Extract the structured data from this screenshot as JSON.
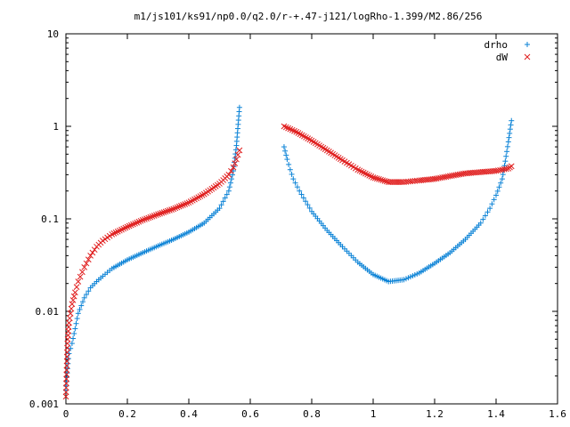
{
  "chart_data": {
    "type": "scatter",
    "title": "m1/js101/ks91/np0.0/q2.0/r-+.47-j121/logRho-1.399/M2.86/256",
    "xlabel": "",
    "ylabel": "",
    "xlim": [
      0,
      1.6
    ],
    "ylim": [
      0.001,
      10
    ],
    "yscale": "log",
    "grid": false,
    "legend_position": "top-right",
    "x_ticks": [
      "0",
      "0.2",
      "0.4",
      "0.6",
      "0.8",
      "1",
      "1.2",
      "1.4",
      "1.6"
    ],
    "y_ticks": [
      "0.001",
      "0.01",
      "0.1",
      "1",
      "10"
    ],
    "series": [
      {
        "name": "drho",
        "marker": "plus",
        "color": "#0a82d6",
        "segments": [
          {
            "x": [
              0.0,
              0.005,
              0.01,
              0.02,
              0.03,
              0.04,
              0.06,
              0.08,
              0.1,
              0.12,
              0.15,
              0.2,
              0.25,
              0.3,
              0.35,
              0.4,
              0.45,
              0.5,
              0.53,
              0.545,
              0.555,
              0.565
            ],
            "y": [
              0.0014,
              0.0024,
              0.0035,
              0.0045,
              0.0065,
              0.0095,
              0.014,
              0.018,
              0.021,
              0.024,
              0.029,
              0.036,
              0.043,
              0.051,
              0.06,
              0.072,
              0.09,
              0.13,
              0.2,
              0.33,
              0.62,
              1.6
            ]
          },
          {
            "x": [
              0.71,
              0.72,
              0.73,
              0.74,
              0.76,
              0.8,
              0.85,
              0.9,
              0.95,
              1.0,
              1.05,
              1.1,
              1.15,
              1.2,
              1.25,
              1.3,
              1.35,
              1.38,
              1.4,
              1.42,
              1.43,
              1.44,
              1.45
            ],
            "y": [
              0.6,
              0.44,
              0.34,
              0.27,
              0.2,
              0.12,
              0.075,
              0.05,
              0.034,
              0.025,
              0.021,
              0.022,
              0.026,
              0.033,
              0.043,
              0.06,
              0.09,
              0.13,
              0.18,
              0.27,
              0.42,
              0.68,
              1.15
            ]
          }
        ]
      },
      {
        "name": "dW",
        "marker": "cross",
        "color": "#e01f1f",
        "segments": [
          {
            "x": [
              0.0,
              0.005,
              0.01,
              0.02,
              0.03,
              0.04,
              0.06,
              0.08,
              0.1,
              0.12,
              0.15,
              0.2,
              0.25,
              0.3,
              0.35,
              0.4,
              0.45,
              0.5,
              0.53,
              0.545,
              0.555,
              0.565
            ],
            "y": [
              0.0012,
              0.0045,
              0.0075,
              0.012,
              0.016,
              0.021,
              0.03,
              0.04,
              0.05,
              0.058,
              0.068,
              0.082,
              0.097,
              0.112,
              0.128,
              0.15,
              0.185,
              0.24,
              0.3,
              0.36,
              0.44,
              0.55
            ]
          },
          {
            "x": [
              0.71,
              0.75,
              0.8,
              0.85,
              0.9,
              0.95,
              1.0,
              1.05,
              1.1,
              1.15,
              1.2,
              1.25,
              1.3,
              1.35,
              1.4,
              1.42,
              1.44,
              1.45
            ],
            "y": [
              1.0,
              0.87,
              0.7,
              0.55,
              0.43,
              0.34,
              0.28,
              0.25,
              0.25,
              0.26,
              0.27,
              0.29,
              0.31,
              0.32,
              0.33,
              0.34,
              0.35,
              0.37
            ]
          }
        ]
      }
    ]
  }
}
